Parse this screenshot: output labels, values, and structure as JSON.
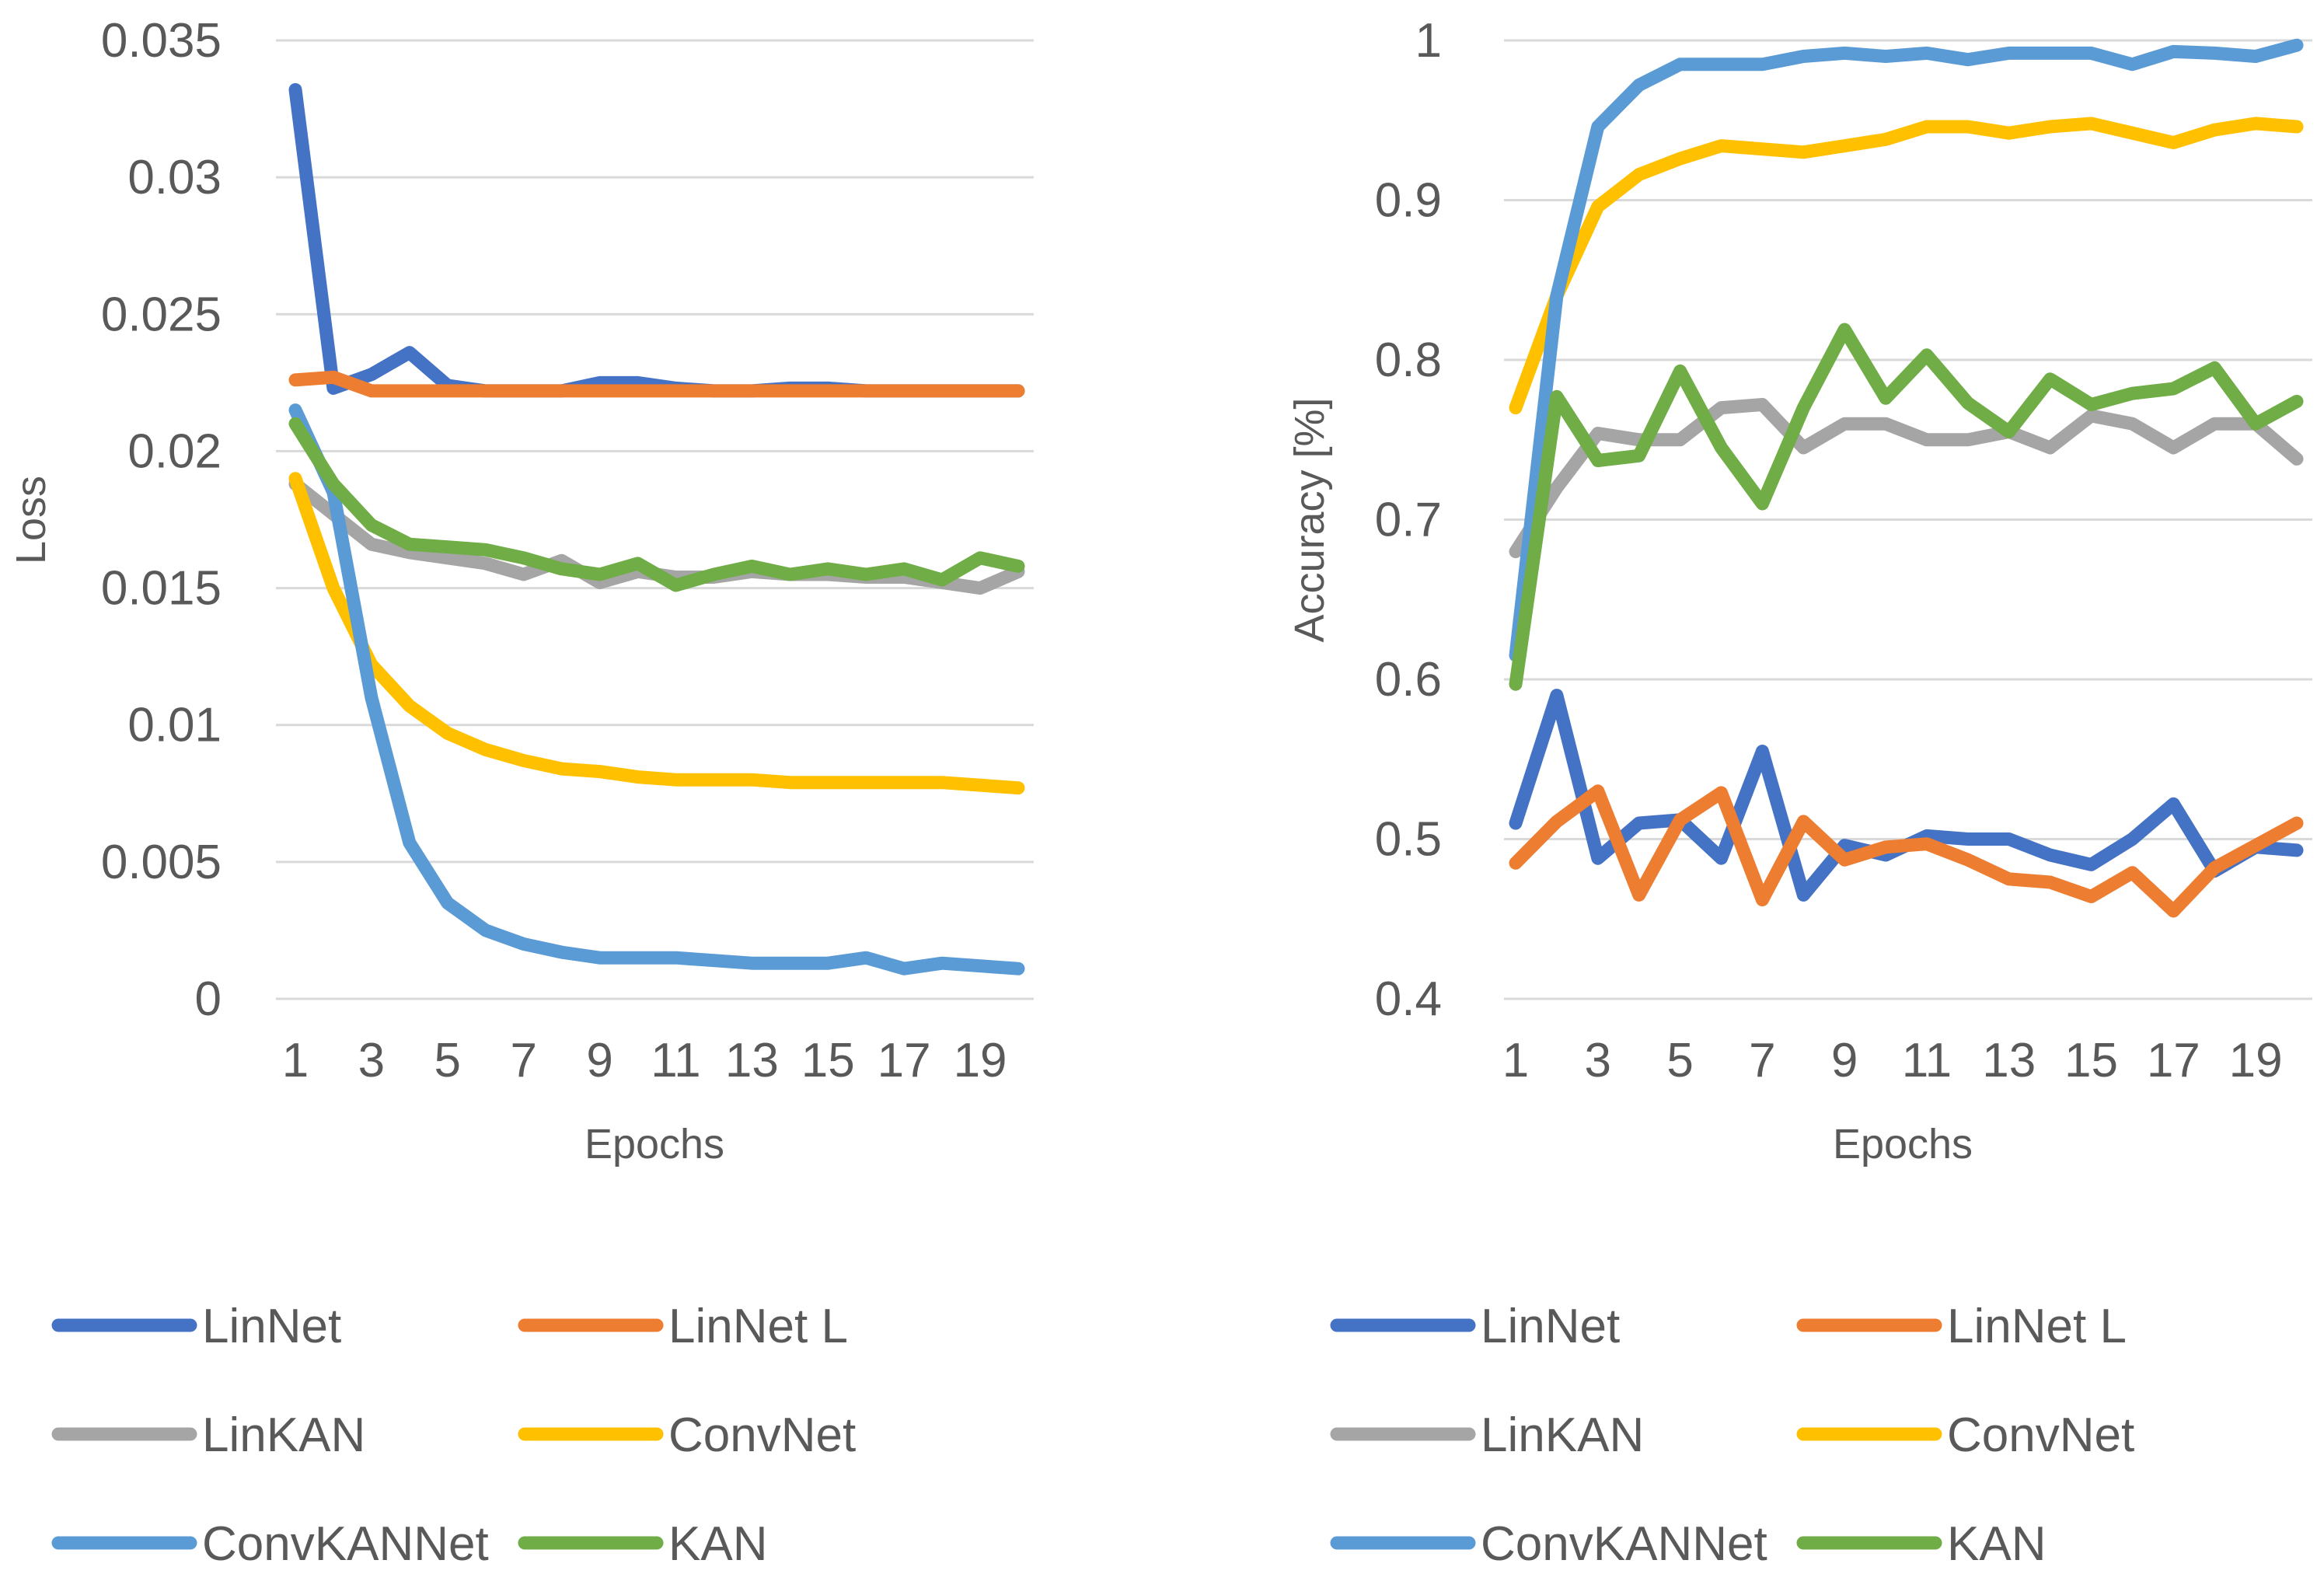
{
  "chart_data": [
    {
      "type": "line",
      "title": "",
      "xlabel": "Epochs",
      "ylabel": "Loss",
      "x": [
        1,
        2,
        3,
        4,
        5,
        6,
        7,
        8,
        9,
        10,
        11,
        12,
        13,
        14,
        15,
        16,
        17,
        18,
        19,
        20
      ],
      "xtick_labels": [
        "1",
        "3",
        "5",
        "7",
        "9",
        "11",
        "13",
        "15",
        "17",
        "19"
      ],
      "ylim": [
        0,
        0.035
      ],
      "ytick_labels": [
        "0",
        "0.005",
        "0.01",
        "0.015",
        "0.02",
        "0.025",
        "0.03",
        "0.035"
      ],
      "grid": true,
      "legend": "bottom",
      "series": [
        {
          "name": "LinNet",
          "color": "#4472C4",
          "values": [
            0.0332,
            0.0223,
            0.0228,
            0.0236,
            0.0224,
            0.0222,
            0.0222,
            0.0222,
            0.0225,
            0.0225,
            0.0223,
            0.0222,
            0.0222,
            0.0223,
            0.0223,
            0.0222,
            0.0222,
            0.0222,
            0.0222,
            0.0222
          ]
        },
        {
          "name": "LinNet L",
          "color": "#ED7D31",
          "values": [
            0.0226,
            0.0227,
            0.0222,
            0.0222,
            0.0222,
            0.0222,
            0.0222,
            0.0222,
            0.0222,
            0.0222,
            0.0222,
            0.0222,
            0.0222,
            0.0222,
            0.0222,
            0.0222,
            0.0222,
            0.0222,
            0.0222,
            0.0222
          ]
        },
        {
          "name": "LinKAN",
          "color": "#A5A5A5",
          "values": [
            0.0188,
            0.0177,
            0.0166,
            0.0163,
            0.0161,
            0.0159,
            0.0155,
            0.016,
            0.0152,
            0.0156,
            0.0154,
            0.0154,
            0.0156,
            0.0155,
            0.0155,
            0.0154,
            0.0154,
            0.0152,
            0.015,
            0.0156
          ]
        },
        {
          "name": "ConvNet",
          "color": "#FFC000",
          "values": [
            0.019,
            0.015,
            0.0122,
            0.0107,
            0.0097,
            0.0091,
            0.0087,
            0.0084,
            0.0083,
            0.0081,
            0.008,
            0.008,
            0.008,
            0.0079,
            0.0079,
            0.0079,
            0.0079,
            0.0079,
            0.0078,
            0.0077
          ]
        },
        {
          "name": "ConvKANNet",
          "color": "#5B9BD5",
          "values": [
            0.0215,
            0.0185,
            0.011,
            0.0057,
            0.0035,
            0.0025,
            0.002,
            0.0017,
            0.0015,
            0.0015,
            0.0015,
            0.0014,
            0.0013,
            0.0013,
            0.0013,
            0.0015,
            0.0011,
            0.0013,
            0.0012,
            0.0011
          ]
        },
        {
          "name": "KAN",
          "color": "#70AD47",
          "values": [
            0.021,
            0.0188,
            0.0173,
            0.0166,
            0.0165,
            0.0164,
            0.0161,
            0.0157,
            0.0155,
            0.0159,
            0.0151,
            0.0155,
            0.0158,
            0.0155,
            0.0157,
            0.0155,
            0.0157,
            0.0153,
            0.0161,
            0.0158
          ]
        }
      ]
    },
    {
      "type": "line",
      "title": "",
      "xlabel": "Epochs",
      "ylabel": "Accuracy [%]",
      "x": [
        1,
        2,
        3,
        4,
        5,
        6,
        7,
        8,
        9,
        10,
        11,
        12,
        13,
        14,
        15,
        16,
        17,
        18,
        19,
        20
      ],
      "xtick_labels": [
        "1",
        "3",
        "5",
        "7",
        "9",
        "11",
        "13",
        "15",
        "17",
        "19"
      ],
      "ylim": [
        0.4,
        1.0
      ],
      "ytick_labels": [
        "0.4",
        "0.5",
        "0.6",
        "0.7",
        "0.8",
        "0.9",
        "1"
      ],
      "grid": true,
      "legend": "bottom",
      "series": [
        {
          "name": "LinNet",
          "color": "#4472C4",
          "values": [
            0.51,
            0.59,
            0.488,
            0.51,
            0.512,
            0.488,
            0.555,
            0.465,
            0.496,
            0.49,
            0.502,
            0.5,
            0.5,
            0.49,
            0.484,
            0.5,
            0.522,
            0.48,
            0.495,
            0.493
          ]
        },
        {
          "name": "LinNet L",
          "color": "#ED7D31",
          "values": [
            0.485,
            0.511,
            0.53,
            0.465,
            0.512,
            0.529,
            0.462,
            0.511,
            0.487,
            0.495,
            0.497,
            0.487,
            0.475,
            0.473,
            0.464,
            0.479,
            0.455,
            0.482,
            0.496,
            0.51
          ]
        },
        {
          "name": "LinKAN",
          "color": "#A5A5A5",
          "values": [
            0.68,
            0.72,
            0.754,
            0.75,
            0.75,
            0.77,
            0.772,
            0.745,
            0.76,
            0.76,
            0.75,
            0.75,
            0.755,
            0.745,
            0.765,
            0.76,
            0.745,
            0.76,
            0.76,
            0.738
          ]
        },
        {
          "name": "ConvNet",
          "color": "#FFC000",
          "values": [
            0.77,
            0.84,
            0.896,
            0.916,
            0.926,
            0.934,
            0.932,
            0.93,
            0.934,
            0.938,
            0.946,
            0.946,
            0.942,
            0.946,
            0.948,
            0.942,
            0.936,
            0.944,
            0.948,
            0.946
          ]
        },
        {
          "name": "ConvKANNet",
          "color": "#5B9BD5",
          "values": [
            0.615,
            0.84,
            0.946,
            0.972,
            0.985,
            0.985,
            0.985,
            0.99,
            0.992,
            0.99,
            0.992,
            0.988,
            0.992,
            0.992,
            0.992,
            0.985,
            0.993,
            0.992,
            0.99,
            0.997
          ]
        },
        {
          "name": "KAN",
          "color": "#70AD47",
          "values": [
            0.597,
            0.777,
            0.737,
            0.74,
            0.793,
            0.745,
            0.71,
            0.77,
            0.819,
            0.776,
            0.803,
            0.773,
            0.755,
            0.788,
            0.772,
            0.779,
            0.782,
            0.795,
            0.76,
            0.774
          ]
        }
      ]
    }
  ]
}
